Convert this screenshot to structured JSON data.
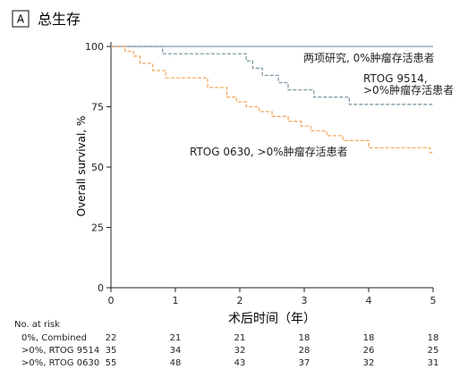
{
  "panel_letter": "A",
  "chart_data": {
    "type": "line",
    "title": "总生存",
    "xlabel": "术后时间（年）",
    "ylabel": "Overall survival, %",
    "xlim": [
      0,
      5
    ],
    "ylim": [
      0,
      100
    ],
    "x_ticks": [
      0,
      1,
      2,
      3,
      4,
      5
    ],
    "y_ticks": [
      0,
      25,
      50,
      75,
      100
    ],
    "grid": false,
    "series": [
      {
        "name": "两项研究, 0%肿瘤存活患者",
        "color": "#7f9aa5",
        "dash": "solid",
        "steps": [
          [
            0,
            100
          ],
          [
            5,
            100
          ]
        ]
      },
      {
        "name_lines": [
          "RTOG 9514,",
          ">0%肿瘤存活患者"
        ],
        "color": "#7f9aa5",
        "dash": "dashed",
        "steps": [
          [
            0,
            100
          ],
          [
            0.8,
            97
          ],
          [
            2.1,
            94
          ],
          [
            2.2,
            91
          ],
          [
            2.35,
            88
          ],
          [
            2.6,
            85
          ],
          [
            2.75,
            82
          ],
          [
            3.15,
            79
          ],
          [
            3.7,
            76
          ],
          [
            5,
            76
          ]
        ]
      },
      {
        "name": "RTOG 0630, >0%肿瘤存活患者",
        "color": "#f4a95e",
        "dash": "dashed",
        "steps": [
          [
            0,
            100
          ],
          [
            0.22,
            98
          ],
          [
            0.35,
            96
          ],
          [
            0.45,
            93
          ],
          [
            0.65,
            90
          ],
          [
            0.85,
            87
          ],
          [
            1.5,
            83
          ],
          [
            1.8,
            79
          ],
          [
            1.95,
            77
          ],
          [
            2.1,
            75
          ],
          [
            2.3,
            73
          ],
          [
            2.5,
            71
          ],
          [
            2.75,
            69
          ],
          [
            2.95,
            67
          ],
          [
            3.1,
            65
          ],
          [
            3.35,
            63
          ],
          [
            3.6,
            61
          ],
          [
            4.0,
            58
          ],
          [
            4.95,
            56
          ],
          [
            5,
            56
          ]
        ]
      }
    ]
  },
  "risk_table": {
    "title": "No. at risk",
    "rows": [
      {
        "label": "0%, Combined",
        "values": [
          22,
          21,
          21,
          18,
          18,
          18
        ]
      },
      {
        "label": ">0%, RTOG 9514",
        "values": [
          35,
          34,
          32,
          28,
          26,
          25
        ]
      },
      {
        "label": ">0%, RTOG 0630",
        "values": [
          55,
          48,
          43,
          37,
          32,
          31
        ]
      }
    ]
  }
}
